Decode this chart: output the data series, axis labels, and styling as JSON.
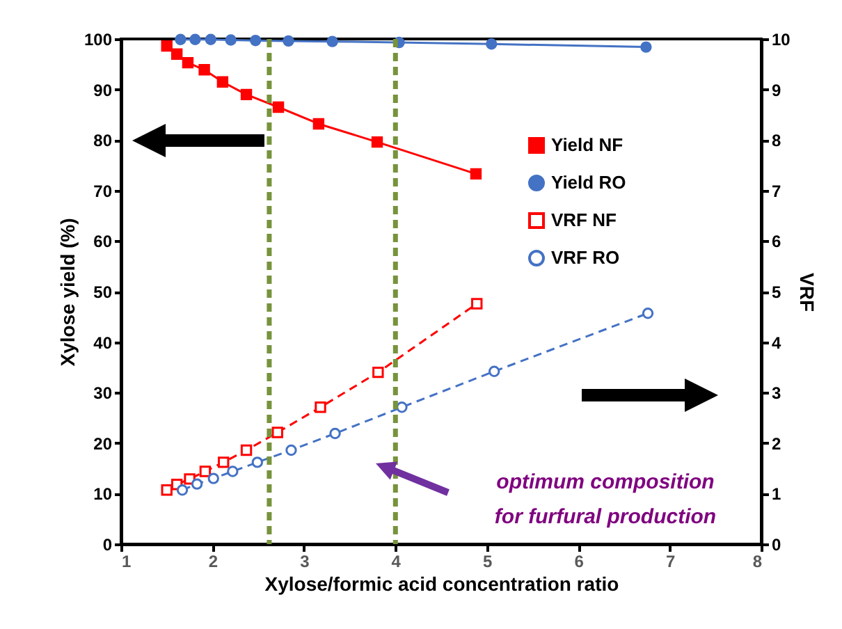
{
  "chart_data": {
    "type": "line",
    "xlabel": "Xylose/formic acid concentration ratio",
    "ylabel": "Xylose yield (%)",
    "y2label": "VRF",
    "xlim": [
      1,
      8
    ],
    "xticks": [
      1,
      2,
      3,
      4,
      5,
      6,
      7,
      8
    ],
    "ylim": [
      0,
      100
    ],
    "yticks": [
      0,
      10,
      20,
      30,
      40,
      50,
      60,
      70,
      80,
      90,
      100
    ],
    "y2lim": [
      0,
      10
    ],
    "y2ticks": [
      0,
      1,
      2,
      3,
      4,
      5,
      6,
      7,
      8,
      9,
      10
    ],
    "grid": false,
    "legend": "right",
    "series": [
      {
        "name": "Yield NF",
        "color": "#ff0000",
        "marker": "square",
        "line_style": "solid",
        "x": [
          1.5,
          1.61,
          1.73,
          1.91,
          2.11,
          2.37,
          2.72,
          3.16,
          3.8,
          4.88
        ],
        "values": [
          98.6,
          97.0,
          95.3,
          93.9,
          91.5,
          89.0,
          86.5,
          83.2,
          79.6,
          73.3
        ]
      },
      {
        "name": "Yield RO",
        "color": "#4472c4",
        "marker": "circle",
        "line_style": "solid",
        "x": [
          1.65,
          1.81,
          1.98,
          2.2,
          2.47,
          2.83,
          3.31,
          4.04,
          5.05,
          6.74
        ],
        "values": [
          99.9,
          99.9,
          99.9,
          99.8,
          99.7,
          99.6,
          99.5,
          99.3,
          99.0,
          98.4
        ]
      },
      {
        "name": "VRF NF",
        "color": "#ff0000",
        "marker": "square",
        "line_style": "dashed",
        "axis": "y2",
        "x": [
          1.5,
          1.61,
          1.75,
          1.92,
          2.12,
          2.37,
          2.71,
          3.18,
          3.81,
          4.89
        ],
        "values": [
          1.07,
          1.18,
          1.29,
          1.44,
          1.62,
          1.86,
          2.21,
          2.71,
          3.4,
          4.76
        ]
      },
      {
        "name": "VRF RO",
        "color": "#4472c4",
        "marker": "circle",
        "line_style": "dashed",
        "axis": "y2",
        "x": [
          1.67,
          1.83,
          2.01,
          2.22,
          2.49,
          2.86,
          3.34,
          4.07,
          5.08,
          6.76
        ],
        "values": [
          1.07,
          1.19,
          1.3,
          1.44,
          1.62,
          1.86,
          2.19,
          2.71,
          3.42,
          4.57
        ]
      }
    ],
    "ref_lines": [
      {
        "axis": "x",
        "value": 2.62,
        "color": "#77933c",
        "line_style": "dashed"
      },
      {
        "axis": "x",
        "value": 4.0,
        "color": "#77933c",
        "line_style": "dashed"
      }
    ],
    "annotations": [
      "optimum composition\nfor furfural production"
    ]
  }
}
